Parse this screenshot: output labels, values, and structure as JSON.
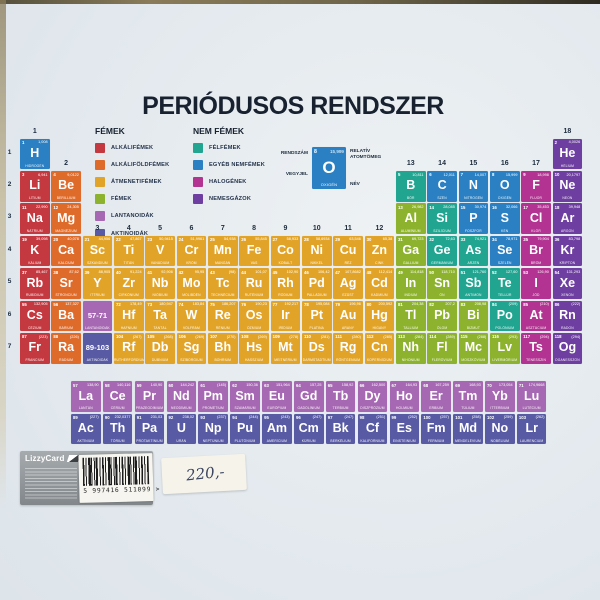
{
  "title": "PERIÓDUSOS RENDSZER",
  "colors": {
    "alkali": "#c4383f",
    "alkaline": "#df6b2b",
    "transition": "#e2a428",
    "metal": "#8db32e",
    "lanthanoid": "#a668b2",
    "actinoid": "#585ba4",
    "metalloid": "#21a591",
    "nonmetal": "#2a80c2",
    "halogen": "#b23391",
    "noble": "#6e3fa0"
  },
  "legend": {
    "metals_title": "FÉMEK",
    "nonmetals_title": "NEM FÉMEK",
    "metals": [
      {
        "label": "ALKÁLIFÉMEK",
        "cat": "alkali"
      },
      {
        "label": "ALKÁLIFÖLDFÉMEK",
        "cat": "alkaline"
      },
      {
        "label": "ÁTMENETIFÉMEK",
        "cat": "transition"
      },
      {
        "label": "FÉMEK",
        "cat": "metal"
      },
      {
        "label": "LANTANOIDÁK",
        "cat": "lanthanoid"
      },
      {
        "label": "AKTINOIDÁK",
        "cat": "actinoid"
      }
    ],
    "nonmetals": [
      {
        "label": "FÉLFÉMEK",
        "cat": "metalloid"
      },
      {
        "label": "EGYÉB NEMFÉMEK",
        "cat": "nonmetal"
      },
      {
        "label": "HALOGÉNEK",
        "cat": "halogen"
      },
      {
        "label": "NEMESGÁZOK",
        "cat": "noble"
      }
    ]
  },
  "key": {
    "labels": {
      "number": "RENDSZÁM",
      "symbol": "VEGYJEL",
      "mass": "RELATÍV ATOMTÖMEG",
      "name": "NÉV"
    },
    "sample": {
      "n": "8",
      "s": "O",
      "name": "OXIGÉN",
      "mass": "15,999",
      "cat": "nonmetal"
    }
  },
  "group_labels": [
    "1",
    "2",
    "3",
    "4",
    "5",
    "6",
    "7",
    "8",
    "9",
    "10",
    "11",
    "12",
    "13",
    "14",
    "15",
    "16",
    "17",
    "18"
  ],
  "period_labels": [
    "1",
    "2",
    "3",
    "4",
    "5",
    "6",
    "7"
  ],
  "elements": [
    {
      "n": "1",
      "s": "H",
      "name": "HIDROGÉN",
      "mass": "1,008",
      "cat": "nonmetal",
      "r": 1,
      "g": 1
    },
    {
      "n": "2",
      "s": "He",
      "name": "HÉLIUM",
      "mass": "4,0026",
      "cat": "noble",
      "r": 1,
      "g": 18
    },
    {
      "n": "3",
      "s": "Li",
      "name": "LÍTIUM",
      "mass": "6,941",
      "cat": "alkali",
      "r": 2,
      "g": 1
    },
    {
      "n": "4",
      "s": "Be",
      "name": "BERILLIUM",
      "mass": "9,0122",
      "cat": "alkaline",
      "r": 2,
      "g": 2
    },
    {
      "n": "5",
      "s": "B",
      "name": "BÓR",
      "mass": "10,811",
      "cat": "metalloid",
      "r": 2,
      "g": 13
    },
    {
      "n": "6",
      "s": "C",
      "name": "SZÉN",
      "mass": "12,011",
      "cat": "nonmetal",
      "r": 2,
      "g": 14
    },
    {
      "n": "7",
      "s": "N",
      "name": "NITROGÉN",
      "mass": "14,007",
      "cat": "nonmetal",
      "r": 2,
      "g": 15
    },
    {
      "n": "8",
      "s": "O",
      "name": "OXIGÉN",
      "mass": "15,999",
      "cat": "nonmetal",
      "r": 2,
      "g": 16
    },
    {
      "n": "9",
      "s": "F",
      "name": "FLUOR",
      "mass": "18,998",
      "cat": "halogen",
      "r": 2,
      "g": 17
    },
    {
      "n": "10",
      "s": "Ne",
      "name": "NEON",
      "mass": "20,1797",
      "cat": "noble",
      "r": 2,
      "g": 18
    },
    {
      "n": "11",
      "s": "Na",
      "name": "NÁTRIUM",
      "mass": "22,990",
      "cat": "alkali",
      "r": 3,
      "g": 1
    },
    {
      "n": "12",
      "s": "Mg",
      "name": "MAGNÉZIUM",
      "mass": "24,305",
      "cat": "alkaline",
      "r": 3,
      "g": 2
    },
    {
      "n": "13",
      "s": "Al",
      "name": "ALUMÍNIUM",
      "mass": "26,982",
      "cat": "metal",
      "r": 3,
      "g": 13
    },
    {
      "n": "14",
      "s": "Si",
      "name": "SZILÍCIUM",
      "mass": "28,085",
      "cat": "metalloid",
      "r": 3,
      "g": 14
    },
    {
      "n": "15",
      "s": "P",
      "name": "FOSZFOR",
      "mass": "30,974",
      "cat": "nonmetal",
      "r": 3,
      "g": 15
    },
    {
      "n": "16",
      "s": "S",
      "name": "KÉN",
      "mass": "32,066",
      "cat": "nonmetal",
      "r": 3,
      "g": 16
    },
    {
      "n": "17",
      "s": "Cl",
      "name": "KLÓR",
      "mass": "35,453",
      "cat": "halogen",
      "r": 3,
      "g": 17
    },
    {
      "n": "18",
      "s": "Ar",
      "name": "ARGON",
      "mass": "39,948",
      "cat": "noble",
      "r": 3,
      "g": 18
    },
    {
      "n": "19",
      "s": "K",
      "name": "KÁLIUM",
      "mass": "39,098",
      "cat": "alkali",
      "r": 4,
      "g": 1
    },
    {
      "n": "20",
      "s": "Ca",
      "name": "KALCIUM",
      "mass": "40,078",
      "cat": "alkaline",
      "r": 4,
      "g": 2
    },
    {
      "n": "21",
      "s": "Sc",
      "name": "SZKANDIUM",
      "mass": "44,956",
      "cat": "transition",
      "r": 4,
      "g": 3
    },
    {
      "n": "22",
      "s": "Ti",
      "name": "TITÁN",
      "mass": "47,867",
      "cat": "transition",
      "r": 4,
      "g": 4
    },
    {
      "n": "23",
      "s": "V",
      "name": "VANÁDIUM",
      "mass": "50,9415",
      "cat": "transition",
      "r": 4,
      "g": 5
    },
    {
      "n": "24",
      "s": "Cr",
      "name": "KRÓM",
      "mass": "51,9961",
      "cat": "transition",
      "r": 4,
      "g": 6
    },
    {
      "n": "25",
      "s": "Mn",
      "name": "MANGÁN",
      "mass": "54,938",
      "cat": "transition",
      "r": 4,
      "g": 7
    },
    {
      "n": "26",
      "s": "Fe",
      "name": "VAS",
      "mass": "55,845",
      "cat": "transition",
      "r": 4,
      "g": 8
    },
    {
      "n": "27",
      "s": "Co",
      "name": "KOBALT",
      "mass": "58,933",
      "cat": "transition",
      "r": 4,
      "g": 9
    },
    {
      "n": "28",
      "s": "Ni",
      "name": "NIKKEL",
      "mass": "58,6934",
      "cat": "transition",
      "r": 4,
      "g": 10
    },
    {
      "n": "29",
      "s": "Cu",
      "name": "RÉZ",
      "mass": "63,546",
      "cat": "transition",
      "r": 4,
      "g": 11
    },
    {
      "n": "30",
      "s": "Zn",
      "name": "CINK",
      "mass": "65,38",
      "cat": "transition",
      "r": 4,
      "g": 12
    },
    {
      "n": "31",
      "s": "Ga",
      "name": "GALLIUM",
      "mass": "69,723",
      "cat": "metal",
      "r": 4,
      "g": 13
    },
    {
      "n": "32",
      "s": "Ge",
      "name": "GERMÁNIUM",
      "mass": "72,63",
      "cat": "metalloid",
      "r": 4,
      "g": 14
    },
    {
      "n": "33",
      "s": "As",
      "name": "ARZÉN",
      "mass": "74,921",
      "cat": "metalloid",
      "r": 4,
      "g": 15
    },
    {
      "n": "34",
      "s": "Se",
      "name": "SZELÉN",
      "mass": "78,971",
      "cat": "nonmetal",
      "r": 4,
      "g": 16
    },
    {
      "n": "35",
      "s": "Br",
      "name": "BRÓM",
      "mass": "79,904",
      "cat": "halogen",
      "r": 4,
      "g": 17
    },
    {
      "n": "36",
      "s": "Kr",
      "name": "KRIPTON",
      "mass": "83,798",
      "cat": "noble",
      "r": 4,
      "g": 18
    },
    {
      "n": "37",
      "s": "Rb",
      "name": "RUBÍDIUM",
      "mass": "85,467",
      "cat": "alkali",
      "r": 5,
      "g": 1
    },
    {
      "n": "38",
      "s": "Sr",
      "name": "STRONCIUM",
      "mass": "87,62",
      "cat": "alkaline",
      "r": 5,
      "g": 2
    },
    {
      "n": "39",
      "s": "Y",
      "name": "ITTRIUM",
      "mass": "88,905",
      "cat": "transition",
      "r": 5,
      "g": 3
    },
    {
      "n": "40",
      "s": "Zr",
      "name": "CIRKÓNIUM",
      "mass": "91,224",
      "cat": "transition",
      "r": 5,
      "g": 4
    },
    {
      "n": "41",
      "s": "Nb",
      "name": "NIÓBIUM",
      "mass": "92,906",
      "cat": "transition",
      "r": 5,
      "g": 5
    },
    {
      "n": "42",
      "s": "Mo",
      "name": "MOLIBDÉN",
      "mass": "95,95",
      "cat": "transition",
      "r": 5,
      "g": 6
    },
    {
      "n": "43",
      "s": "Tc",
      "name": "TECHNÉCIUM",
      "mass": "(98)",
      "cat": "transition",
      "r": 5,
      "g": 7
    },
    {
      "n": "44",
      "s": "Ru",
      "name": "RUTÉNIUM",
      "mass": "101,07",
      "cat": "transition",
      "r": 5,
      "g": 8
    },
    {
      "n": "45",
      "s": "Rh",
      "name": "RÓDIUM",
      "mass": "102,90",
      "cat": "transition",
      "r": 5,
      "g": 9
    },
    {
      "n": "46",
      "s": "Pd",
      "name": "PALLÁDIUM",
      "mass": "106,42",
      "cat": "transition",
      "r": 5,
      "g": 10
    },
    {
      "n": "47",
      "s": "Ag",
      "name": "EZÜST",
      "mass": "107,8682",
      "cat": "transition",
      "r": 5,
      "g": 11
    },
    {
      "n": "48",
      "s": "Cd",
      "name": "KADMIUM",
      "mass": "112,414",
      "cat": "transition",
      "r": 5,
      "g": 12
    },
    {
      "n": "49",
      "s": "In",
      "name": "INDIUM",
      "mass": "114,818",
      "cat": "metal",
      "r": 5,
      "g": 13
    },
    {
      "n": "50",
      "s": "Sn",
      "name": "ÓN",
      "mass": "118,710",
      "cat": "metal",
      "r": 5,
      "g": 14
    },
    {
      "n": "51",
      "s": "Sb",
      "name": "ANTIMON",
      "mass": "121,760",
      "cat": "metalloid",
      "r": 5,
      "g": 15
    },
    {
      "n": "52",
      "s": "Te",
      "name": "TELLÚR",
      "mass": "127,60",
      "cat": "metalloid",
      "r": 5,
      "g": 16
    },
    {
      "n": "53",
      "s": "I",
      "name": "JÓD",
      "mass": "126,90",
      "cat": "halogen",
      "r": 5,
      "g": 17
    },
    {
      "n": "54",
      "s": "Xe",
      "name": "XENON",
      "mass": "131,293",
      "cat": "noble",
      "r": 5,
      "g": 18
    },
    {
      "n": "55",
      "s": "Cs",
      "name": "CÉZIUM",
      "mass": "132,905",
      "cat": "alkali",
      "r": 6,
      "g": 1
    },
    {
      "n": "56",
      "s": "Ba",
      "name": "BÁRIUM",
      "mass": "137,327",
      "cat": "alkaline",
      "r": 6,
      "g": 2
    },
    {
      "range": "57-71",
      "name": "LANTANOIDÁK",
      "cat": "lanthanoid",
      "r": 6,
      "g": 3
    },
    {
      "n": "72",
      "s": "Hf",
      "name": "HAFNIUM",
      "mass": "178,49",
      "cat": "transition",
      "r": 6,
      "g": 4
    },
    {
      "n": "73",
      "s": "Ta",
      "name": "TANTÁL",
      "mass": "180,947",
      "cat": "transition",
      "r": 6,
      "g": 5
    },
    {
      "n": "74",
      "s": "W",
      "name": "VOLFRÁM",
      "mass": "183,84",
      "cat": "transition",
      "r": 6,
      "g": 6
    },
    {
      "n": "75",
      "s": "Re",
      "name": "RÉNIUM",
      "mass": "186,207",
      "cat": "transition",
      "r": 6,
      "g": 7
    },
    {
      "n": "76",
      "s": "Os",
      "name": "OZMIUM",
      "mass": "190,23",
      "cat": "transition",
      "r": 6,
      "g": 8
    },
    {
      "n": "77",
      "s": "Ir",
      "name": "IRÍDIUM",
      "mass": "192,217",
      "cat": "transition",
      "r": 6,
      "g": 9
    },
    {
      "n": "78",
      "s": "Pt",
      "name": "PLATINA",
      "mass": "195,084",
      "cat": "transition",
      "r": 6,
      "g": 10
    },
    {
      "n": "79",
      "s": "Au",
      "name": "ARANY",
      "mass": "196,96",
      "cat": "transition",
      "r": 6,
      "g": 11
    },
    {
      "n": "80",
      "s": "Hg",
      "name": "HIGANY",
      "mass": "200,592",
      "cat": "transition",
      "r": 6,
      "g": 12
    },
    {
      "n": "81",
      "s": "Tl",
      "name": "TALLIUM",
      "mass": "204,38",
      "cat": "metal",
      "r": 6,
      "g": 13
    },
    {
      "n": "82",
      "s": "Pb",
      "name": "ÓLOM",
      "mass": "207,2",
      "cat": "metal",
      "r": 6,
      "g": 14
    },
    {
      "n": "83",
      "s": "Bi",
      "name": "BIZMUT",
      "mass": "208,98",
      "cat": "metal",
      "r": 6,
      "g": 15
    },
    {
      "n": "84",
      "s": "Po",
      "name": "POLÓNIUM",
      "mass": "(209)",
      "cat": "metalloid",
      "r": 6,
      "g": 16
    },
    {
      "n": "85",
      "s": "At",
      "name": "ASZTÁCIUM",
      "mass": "(210)",
      "cat": "halogen",
      "r": 6,
      "g": 17
    },
    {
      "n": "86",
      "s": "Rn",
      "name": "RADON",
      "mass": "(222)",
      "cat": "noble",
      "r": 6,
      "g": 18
    },
    {
      "n": "87",
      "s": "Fr",
      "name": "FRANCIUM",
      "mass": "(223)",
      "cat": "alkali",
      "r": 7,
      "g": 1
    },
    {
      "n": "88",
      "s": "Ra",
      "name": "RÁDIUM",
      "mass": "(226)",
      "cat": "alkaline",
      "r": 7,
      "g": 2
    },
    {
      "range": "89-103",
      "name": "AKTINOIDÁK",
      "cat": "actinoid",
      "r": 7,
      "g": 3
    },
    {
      "n": "104",
      "s": "Rf",
      "name": "RUTHERFORDIUM",
      "mass": "(267)",
      "cat": "transition",
      "r": 7,
      "g": 4
    },
    {
      "n": "105",
      "s": "Db",
      "name": "DUBNIUM",
      "mass": "(268)",
      "cat": "transition",
      "r": 7,
      "g": 5
    },
    {
      "n": "106",
      "s": "Sg",
      "name": "SZÍBORGIUM",
      "mass": "(269)",
      "cat": "transition",
      "r": 7,
      "g": 6
    },
    {
      "n": "107",
      "s": "Bh",
      "name": "BOHRIUM",
      "mass": "(270)",
      "cat": "transition",
      "r": 7,
      "g": 7
    },
    {
      "n": "108",
      "s": "Hs",
      "name": "HASSZIUM",
      "mass": "(269)",
      "cat": "transition",
      "r": 7,
      "g": 8
    },
    {
      "n": "109",
      "s": "Mt",
      "name": "MEITNÉRIUM",
      "mass": "(278)",
      "cat": "transition",
      "r": 7,
      "g": 9
    },
    {
      "n": "110",
      "s": "Ds",
      "name": "DARMSTADTIUM",
      "mass": "(281)",
      "cat": "transition",
      "r": 7,
      "g": 10
    },
    {
      "n": "111",
      "s": "Rg",
      "name": "RÖNTGENIUM",
      "mass": "(280)",
      "cat": "transition",
      "r": 7,
      "g": 11
    },
    {
      "n": "112",
      "s": "Cn",
      "name": "KOPERNÍCIUM",
      "mass": "(285)",
      "cat": "transition",
      "r": 7,
      "g": 12
    },
    {
      "n": "113",
      "s": "Nh",
      "name": "NIHONIUM",
      "mass": "(284)",
      "cat": "metal",
      "r": 7,
      "g": 13
    },
    {
      "n": "114",
      "s": "Fl",
      "name": "FLERÓVIUM",
      "mass": "(289)",
      "cat": "metal",
      "r": 7,
      "g": 14
    },
    {
      "n": "115",
      "s": "Mc",
      "name": "MOSZKÓVIUM",
      "mass": "(288)",
      "cat": "metal",
      "r": 7,
      "g": 15
    },
    {
      "n": "116",
      "s": "Lv",
      "name": "LIVERMÓRIUM",
      "mass": "(293)",
      "cat": "metal",
      "r": 7,
      "g": 16
    },
    {
      "n": "117",
      "s": "Ts",
      "name": "TENESSZIN",
      "mass": "(294)",
      "cat": "halogen",
      "r": 7,
      "g": 17
    },
    {
      "n": "118",
      "s": "Og",
      "name": "OGANESSZON",
      "mass": "(294)",
      "cat": "noble",
      "r": 7,
      "g": 18
    },
    {
      "n": "57",
      "s": "La",
      "name": "LANTÁN",
      "mass": "138,90",
      "cat": "lanthanoid",
      "r": 8,
      "g": 1
    },
    {
      "n": "58",
      "s": "Ce",
      "name": "CÉRIUM",
      "mass": "140,116",
      "cat": "lanthanoid",
      "r": 8,
      "g": 2
    },
    {
      "n": "59",
      "s": "Pr",
      "name": "PRAZEODÍMIUM",
      "mass": "140,90",
      "cat": "lanthanoid",
      "r": 8,
      "g": 3
    },
    {
      "n": "60",
      "s": "Nd",
      "name": "NEODÍMIUM",
      "mass": "144,242",
      "cat": "lanthanoid",
      "r": 8,
      "g": 4
    },
    {
      "n": "61",
      "s": "Pm",
      "name": "PROMÉTIUM",
      "mass": "(145)",
      "cat": "lanthanoid",
      "r": 8,
      "g": 5
    },
    {
      "n": "62",
      "s": "Sm",
      "name": "SZAMÁRIUM",
      "mass": "150,36",
      "cat": "lanthanoid",
      "r": 8,
      "g": 6
    },
    {
      "n": "63",
      "s": "Eu",
      "name": "EURÓPIUM",
      "mass": "151,964",
      "cat": "lanthanoid",
      "r": 8,
      "g": 7
    },
    {
      "n": "64",
      "s": "Gd",
      "name": "GADOLÍNIUM",
      "mass": "157,25",
      "cat": "lanthanoid",
      "r": 8,
      "g": 8
    },
    {
      "n": "65",
      "s": "Tb",
      "name": "TERBIUM",
      "mass": "158,92",
      "cat": "lanthanoid",
      "r": 8,
      "g": 9
    },
    {
      "n": "66",
      "s": "Dy",
      "name": "DISZPRÓZIUM",
      "mass": "162,500",
      "cat": "lanthanoid",
      "r": 8,
      "g": 10
    },
    {
      "n": "67",
      "s": "Ho",
      "name": "HOLMIUM",
      "mass": "164,93",
      "cat": "lanthanoid",
      "r": 8,
      "g": 11
    },
    {
      "n": "68",
      "s": "Er",
      "name": "ERBIUM",
      "mass": "167,259",
      "cat": "lanthanoid",
      "r": 8,
      "g": 12
    },
    {
      "n": "69",
      "s": "Tm",
      "name": "TÚLIUM",
      "mass": "168,93",
      "cat": "lanthanoid",
      "r": 8,
      "g": 13
    },
    {
      "n": "70",
      "s": "Yb",
      "name": "ITTERBIUM",
      "mass": "173,054",
      "cat": "lanthanoid",
      "r": 8,
      "g": 14
    },
    {
      "n": "71",
      "s": "Lu",
      "name": "LUTÉCIUM",
      "mass": "174,9668",
      "cat": "lanthanoid",
      "r": 8,
      "g": 15
    },
    {
      "n": "89",
      "s": "Ac",
      "name": "AKTÍNIUM",
      "mass": "(227)",
      "cat": "actinoid",
      "r": 9,
      "g": 1
    },
    {
      "n": "90",
      "s": "Th",
      "name": "TÓRIUM",
      "mass": "232,0377",
      "cat": "actinoid",
      "r": 9,
      "g": 2
    },
    {
      "n": "91",
      "s": "Pa",
      "name": "PROTAKTÍNIUM",
      "mass": "231,03",
      "cat": "actinoid",
      "r": 9,
      "g": 3
    },
    {
      "n": "92",
      "s": "U",
      "name": "URÁN",
      "mass": "238,02",
      "cat": "actinoid",
      "r": 9,
      "g": 4
    },
    {
      "n": "93",
      "s": "Np",
      "name": "NEPTÚNIUM",
      "mass": "(237)",
      "cat": "actinoid",
      "r": 9,
      "g": 5
    },
    {
      "n": "94",
      "s": "Pu",
      "name": "PLUTÓNIUM",
      "mass": "(244)",
      "cat": "actinoid",
      "r": 9,
      "g": 6
    },
    {
      "n": "95",
      "s": "Am",
      "name": "AMERÍCIUM",
      "mass": "(243)",
      "cat": "actinoid",
      "r": 9,
      "g": 7
    },
    {
      "n": "96",
      "s": "Cm",
      "name": "KÜRIUM",
      "mass": "(247)",
      "cat": "actinoid",
      "r": 9,
      "g": 8
    },
    {
      "n": "97",
      "s": "Bk",
      "name": "BERKÉLIUM",
      "mass": "(247)",
      "cat": "actinoid",
      "r": 9,
      "g": 9
    },
    {
      "n": "98",
      "s": "Cf",
      "name": "KALIFORNIUM",
      "mass": "(251)",
      "cat": "actinoid",
      "r": 9,
      "g": 10
    },
    {
      "n": "99",
      "s": "Es",
      "name": "EINSTEINIUM",
      "mass": "(252)",
      "cat": "actinoid",
      "r": 9,
      "g": 11
    },
    {
      "n": "100",
      "s": "Fm",
      "name": "FERMIUM",
      "mass": "(257)",
      "cat": "actinoid",
      "r": 9,
      "g": 12
    },
    {
      "n": "101",
      "s": "Md",
      "name": "MENDELÉVIUM",
      "mass": "(258)",
      "cat": "actinoid",
      "r": 9,
      "g": 13
    },
    {
      "n": "102",
      "s": "No",
      "name": "NOBÉLIUM",
      "mass": "(259)",
      "cat": "actinoid",
      "r": 9,
      "g": 14
    },
    {
      "n": "103",
      "s": "Lr",
      "name": "LAURENCIUM",
      "mass": "(262)",
      "cat": "actinoid",
      "r": 9,
      "g": 15
    }
  ],
  "footer": {
    "brand": "LizzyCard",
    "barcode": "5 997416 511099 >",
    "price": "220,-"
  }
}
